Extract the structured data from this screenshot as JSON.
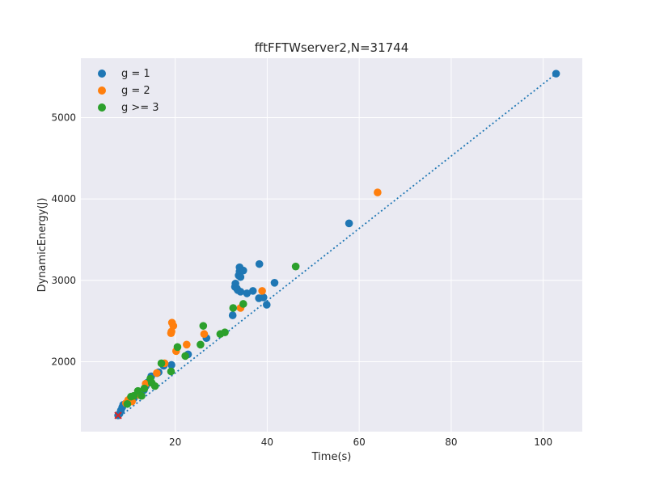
{
  "chart_data": {
    "type": "scatter",
    "title": "fftFFTWserver2,N=31744",
    "xlabel": "Time(s)",
    "ylabel": "DynamicEnergy(J)",
    "xlim": [
      -0.5,
      108.5
    ],
    "ylim": [
      1140,
      5730
    ],
    "xticks": [
      20,
      40,
      60,
      80,
      100
    ],
    "yticks": [
      2000,
      3000,
      4000,
      5000
    ],
    "grid": true,
    "legend_position": "top-left",
    "colors": {
      "g1": "#1f77b4",
      "g2": "#ff7f0e",
      "g3": "#2ca02c",
      "fit": "#1f77b4",
      "marker_x": "#d62728",
      "background": "#eaeaf2",
      "grid": "#ffffff"
    },
    "series": [
      {
        "name": "g = 1",
        "color": "#1f77b4",
        "points": [
          [
            7.6,
            1340
          ],
          [
            7.9,
            1360
          ],
          [
            8.2,
            1400
          ],
          [
            8.5,
            1440
          ],
          [
            8.7,
            1470
          ],
          [
            10.2,
            1540
          ],
          [
            11.0,
            1550
          ],
          [
            11.8,
            1590
          ],
          [
            12.5,
            1600
          ],
          [
            13.2,
            1650
          ],
          [
            13.6,
            1700
          ],
          [
            13.9,
            1740
          ],
          [
            14.4,
            1760
          ],
          [
            14.8,
            1820
          ],
          [
            16.1,
            1860
          ],
          [
            16.4,
            1870
          ],
          [
            17.5,
            1950
          ],
          [
            19.2,
            1960
          ],
          [
            22.8,
            2090
          ],
          [
            26.8,
            2290
          ],
          [
            32.5,
            2570
          ],
          [
            33.0,
            2920
          ],
          [
            33.1,
            2960
          ],
          [
            33.4,
            2900
          ],
          [
            33.6,
            2880
          ],
          [
            33.8,
            3060
          ],
          [
            34.0,
            3110
          ],
          [
            34.0,
            3160
          ],
          [
            34.2,
            3040
          ],
          [
            34.2,
            2860
          ],
          [
            34.8,
            3120
          ],
          [
            35.6,
            2840
          ],
          [
            36.9,
            2870
          ],
          [
            38.2,
            2780
          ],
          [
            38.3,
            3200
          ],
          [
            39.2,
            2790
          ],
          [
            39.9,
            2700
          ],
          [
            41.6,
            2970
          ],
          [
            57.8,
            3700
          ],
          [
            102.8,
            5540
          ]
        ]
      },
      {
        "name": "g = 2",
        "color": "#ff7f0e",
        "points": [
          [
            9.3,
            1490
          ],
          [
            9.8,
            1530
          ],
          [
            10.6,
            1510
          ],
          [
            12.2,
            1590
          ],
          [
            13.6,
            1730
          ],
          [
            16.0,
            1860
          ],
          [
            17.7,
            1980
          ],
          [
            19.1,
            2350
          ],
          [
            19.2,
            2370
          ],
          [
            19.3,
            2480
          ],
          [
            19.6,
            2440
          ],
          [
            20.2,
            2130
          ],
          [
            22.5,
            2210
          ],
          [
            26.3,
            2340
          ],
          [
            34.2,
            2660
          ],
          [
            38.9,
            2870
          ],
          [
            64.0,
            4080
          ]
        ]
      },
      {
        "name": "g >= 3",
        "color": "#2ca02c",
        "points": [
          [
            9.6,
            1480
          ],
          [
            10.4,
            1570
          ],
          [
            11.0,
            1580
          ],
          [
            11.9,
            1640
          ],
          [
            12.7,
            1580
          ],
          [
            13.3,
            1670
          ],
          [
            14.6,
            1790
          ],
          [
            14.9,
            1740
          ],
          [
            15.6,
            1700
          ],
          [
            17.0,
            1980
          ],
          [
            19.1,
            1880
          ],
          [
            20.5,
            2180
          ],
          [
            22.2,
            2070
          ],
          [
            25.5,
            2210
          ],
          [
            26.1,
            2440
          ],
          [
            29.8,
            2340
          ],
          [
            30.8,
            2360
          ],
          [
            32.6,
            2660
          ],
          [
            34.8,
            2710
          ],
          [
            46.2,
            3170
          ]
        ]
      }
    ],
    "fit_line": {
      "style": "dotted",
      "color": "#1f77b4",
      "points": [
        [
          7.4,
          1300
        ],
        [
          102.8,
          5540
        ]
      ]
    },
    "highlight_marker": {
      "symbol": "x",
      "color": "#d62728",
      "point": [
        7.6,
        1340
      ]
    }
  }
}
